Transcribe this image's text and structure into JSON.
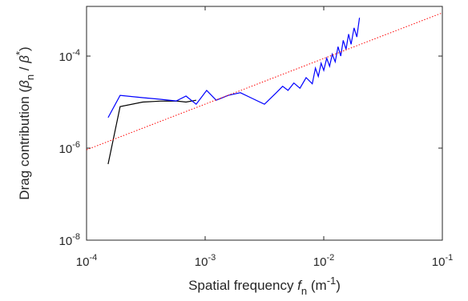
{
  "chart_data": {
    "type": "line",
    "xscale": "log",
    "yscale": "log",
    "xlabel": [
      "Spatial frequency  ",
      "f",
      "n",
      " (m",
      "-1",
      ")"
    ],
    "xlabel_styles": [
      "normal",
      "italic",
      "sub",
      "normal",
      "sup",
      "normal"
    ],
    "ylabel": [
      "Drag contribution (",
      "β",
      "n",
      " / ",
      "β",
      "*",
      ")"
    ],
    "ylabel_styles": [
      "normal",
      "italic",
      "sub",
      "normal",
      "italic",
      "sup",
      "normal"
    ],
    "xlim": [
      0.0001,
      0.1
    ],
    "xticks": [
      {
        "value": 0.0001,
        "label": "10-4"
      },
      {
        "value": 0.001,
        "label": "10-3"
      },
      {
        "value": 0.01,
        "label": "10-2"
      },
      {
        "value": 0.1,
        "label": "10-1"
      }
    ],
    "ylim": [
      1e-08,
      0.0012
    ],
    "yticks": [
      {
        "value": 1e-08,
        "label": "10-8"
      },
      {
        "value": 1e-06,
        "label": "10-6"
      },
      {
        "value": 0.0001,
        "label": "10-4"
      }
    ],
    "series": [
      {
        "color": "#000000",
        "dash": "solid",
        "x": [
          0.000152,
          0.000192,
          0.000297,
          0.000418,
          0.00057,
          0.00069,
          0.00084
        ],
        "values": [
          4.5e-07,
          8e-06,
          1e-05,
          1.05e-05,
          1.06e-05,
          1e-05,
          1.1e-05
        ]
      },
      {
        "color": "#0000ff",
        "dash": "solid",
        "x": [
          0.000152,
          0.000192,
          0.000297,
          0.000418,
          0.00057,
          0.00069,
          0.00084,
          0.00103,
          0.00124,
          0.00157,
          0.00198,
          0.0025,
          0.00316,
          0.00398,
          0.0045,
          0.005,
          0.0056,
          0.0063,
          0.0071,
          0.008,
          0.0085,
          0.009,
          0.0095,
          0.01,
          0.0106,
          0.0112,
          0.0118,
          0.0125,
          0.0132,
          0.0139,
          0.0146,
          0.0154,
          0.0162,
          0.017,
          0.018,
          0.019,
          0.02
        ],
        "values": [
          4.6e-06,
          1.4e-05,
          1.25e-05,
          1.15e-05,
          1.06e-05,
          1.35e-05,
          9e-06,
          1.8e-05,
          1.1e-05,
          1.4e-05,
          1.6e-05,
          1.2e-05,
          9e-06,
          1.6e-05,
          2.2e-05,
          1.8e-05,
          2.6e-05,
          2e-05,
          3.4e-05,
          2.5e-05,
          5.5e-05,
          3.6e-05,
          7e-05,
          4.9e-05,
          9e-05,
          6e-05,
          0.00011,
          7.5e-05,
          0.00016,
          0.0001,
          0.00022,
          0.00014,
          0.0003,
          0.00018,
          0.00041,
          0.00026,
          0.00068
        ]
      },
      {
        "color": "#ff0000",
        "dash": "dotted",
        "x": [
          0.0001,
          0.1
        ],
        "values": [
          9.2e-07,
          0.00087
        ]
      }
    ]
  }
}
